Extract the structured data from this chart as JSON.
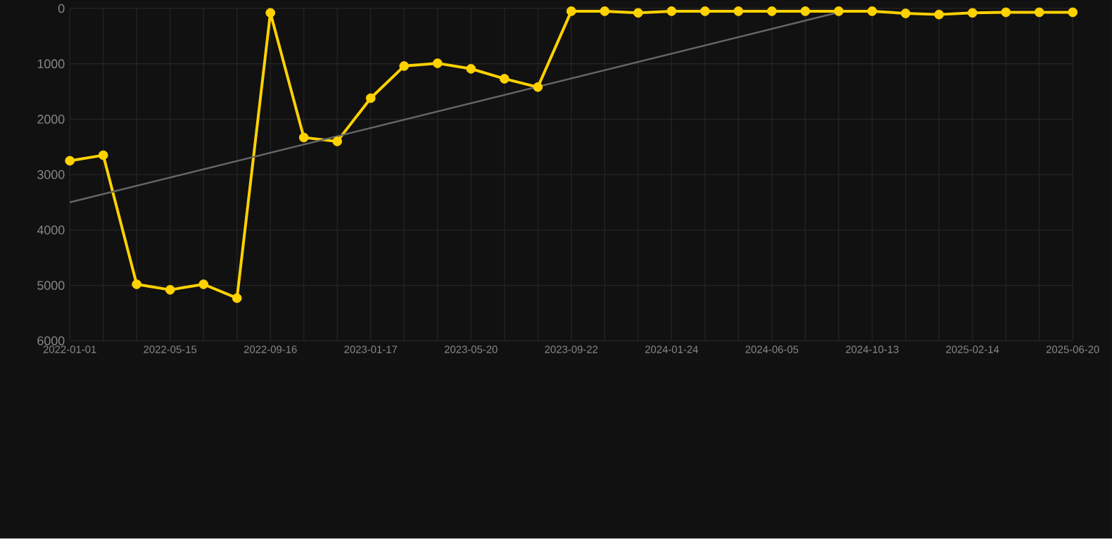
{
  "chart_data": {
    "type": "line",
    "categories": [
      "2022-01-01",
      null,
      null,
      "2022-05-15",
      null,
      null,
      "2022-09-16",
      null,
      null,
      "2023-01-17",
      null,
      null,
      "2023-05-20",
      null,
      null,
      "2023-09-22",
      null,
      null,
      "2024-01-24",
      null,
      null,
      "2024-06-05",
      null,
      null,
      "2024-10-13",
      null,
      null,
      "2025-02-14",
      null,
      null,
      "2025-06-20"
    ],
    "series": [
      {
        "color": "#ffd200",
        "marker": "circle",
        "line_style": "solid",
        "values": [
          2750,
          2650,
          4980,
          5080,
          4980,
          5230,
          80,
          2330,
          2400,
          1620,
          1040,
          990,
          1090,
          1270,
          1420,
          50,
          50,
          80,
          50,
          50,
          50,
          50,
          50,
          50,
          50,
          90,
          110,
          80,
          70,
          70,
          70
        ]
      },
      {
        "type": "line",
        "color": "#666666",
        "marker": "none",
        "line_style": "solid",
        "values": [
          3500,
          null,
          null,
          null,
          null,
          null,
          null,
          null,
          null,
          null,
          null,
          null,
          null,
          null,
          null,
          null,
          null,
          null,
          null,
          null,
          null,
          null,
          null,
          70,
          null,
          null,
          null,
          null,
          null,
          null,
          null
        ]
      }
    ],
    "ylim": [
      6000,
      0
    ],
    "yticks": [
      0,
      1000,
      2000,
      3000,
      4000,
      5000,
      6000
    ],
    "grid": true,
    "legend": false
  }
}
